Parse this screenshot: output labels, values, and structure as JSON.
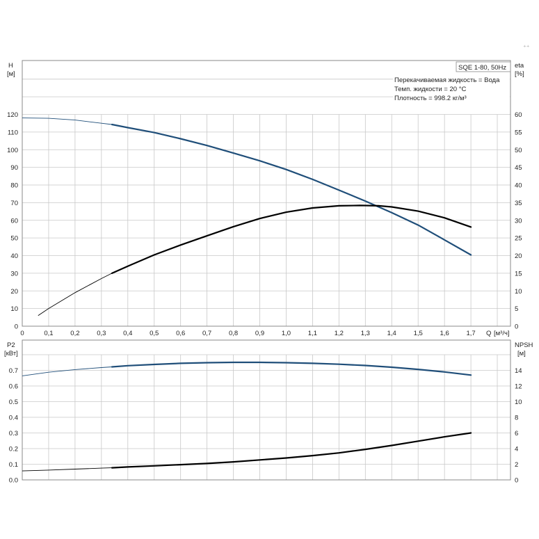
{
  "corner_mark": "⁺⁺",
  "chart_data": [
    {
      "type": "line",
      "name": "performance",
      "legend_box": "SQE 1-80, 50Hz",
      "info_lines": [
        "Перекачиваемая жидкость = Вода",
        "Темп. жидкости = 20 °C",
        "Плотность = 998.2 кг/м³"
      ],
      "ylabel_left": "H",
      "yunit_left": "[м]",
      "ylabel_right": "eta",
      "yunit_right": "[%]",
      "xlabel": "Q",
      "xunit": "[м³/ч]",
      "xlim": [
        0,
        1.85
      ],
      "ylim_left": [
        0,
        120
      ],
      "ylim_right": [
        0,
        60
      ],
      "xticks": [
        0,
        0.1,
        0.2,
        0.3,
        0.4,
        0.5,
        0.6,
        0.7,
        0.8,
        0.9,
        1.0,
        1.1,
        1.2,
        1.3,
        1.4,
        1.5,
        1.6,
        1.7
      ],
      "xtick_labels": [
        "0",
        "0,1",
        "0,2",
        "0,3",
        "0,4",
        "0,5",
        "0,6",
        "0,7",
        "0,8",
        "0,9",
        "1,0",
        "1,1",
        "1,2",
        "1,3",
        "1,4",
        "1,5",
        "1,6",
        "1,7"
      ],
      "yticks_left": [
        0,
        10,
        20,
        30,
        40,
        50,
        60,
        70,
        80,
        90,
        100,
        110,
        120
      ],
      "yticks_right": [
        0,
        5,
        10,
        15,
        20,
        25,
        30,
        35,
        40,
        45,
        50,
        55,
        60
      ],
      "grid": true,
      "series": [
        {
          "axis": "left",
          "color": "#1f4e79",
          "x": [
            0,
            0.1,
            0.2,
            0.3,
            0.34,
            0.4,
            0.5,
            0.6,
            0.7,
            0.8,
            0.9,
            1.0,
            1.1,
            1.2,
            1.3,
            1.4,
            1.5,
            1.6,
            1.7
          ],
          "y": [
            118,
            117.8,
            116.8,
            115,
            114.3,
            112.5,
            109.7,
            106.2,
            102.4,
            98.1,
            93.7,
            88.8,
            83.2,
            77.1,
            70.9,
            64.3,
            57.3,
            48.9,
            40.4
          ],
          "bold_from": 0.34
        },
        {
          "axis": "right",
          "color": "#000000",
          "x": [
            0.06,
            0.1,
            0.2,
            0.3,
            0.34,
            0.4,
            0.5,
            0.6,
            0.7,
            0.8,
            0.9,
            1.0,
            1.1,
            1.2,
            1.28,
            1.35,
            1.4,
            1.5,
            1.6,
            1.7
          ],
          "y": [
            3,
            5,
            9.5,
            13.5,
            15,
            17,
            20.2,
            23,
            25.6,
            28.2,
            30.5,
            32.3,
            33.5,
            34.1,
            34.2,
            34.1,
            33.8,
            32.6,
            30.7,
            28.1
          ],
          "bold_from": 0.34
        }
      ]
    },
    {
      "type": "line",
      "name": "power-npsh",
      "ylabel_left": "P2",
      "yunit_left": "[кВт]",
      "ylabel_right": "NPSH",
      "yunit_right": "[м]",
      "xlim": [
        0,
        1.85
      ],
      "ylim_left": [
        0,
        0.8
      ],
      "ylim_right": [
        0,
        16
      ],
      "yticks_left": [
        0,
        0.1,
        0.2,
        0.3,
        0.4,
        0.5,
        0.6,
        0.7
      ],
      "ytick_labels_left": [
        "0.0",
        "0.1",
        "0.2",
        "0.3",
        "0.4",
        "0.5",
        "0.6",
        "0.7"
      ],
      "yticks_right": [
        0,
        2,
        4,
        6,
        8,
        10,
        12,
        14
      ],
      "grid": true,
      "series": [
        {
          "axis": "left",
          "color": "#1f4e79",
          "x": [
            0,
            0.1,
            0.2,
            0.3,
            0.34,
            0.4,
            0.5,
            0.6,
            0.7,
            0.8,
            0.9,
            1.0,
            1.1,
            1.2,
            1.3,
            1.4,
            1.5,
            1.6,
            1.7
          ],
          "y": [
            0.665,
            0.688,
            0.705,
            0.718,
            0.722,
            0.73,
            0.738,
            0.745,
            0.749,
            0.751,
            0.751,
            0.749,
            0.745,
            0.739,
            0.731,
            0.72,
            0.706,
            0.69,
            0.67
          ],
          "bold_from": 0.34
        },
        {
          "axis": "right",
          "color": "#000000",
          "x": [
            0,
            0.1,
            0.2,
            0.3,
            0.34,
            0.4,
            0.5,
            0.6,
            0.7,
            0.8,
            0.9,
            1.0,
            1.1,
            1.2,
            1.3,
            1.4,
            1.5,
            1.6,
            1.7
          ],
          "y": [
            1.15,
            1.25,
            1.38,
            1.5,
            1.55,
            1.65,
            1.8,
            1.95,
            2.1,
            2.3,
            2.55,
            2.8,
            3.1,
            3.45,
            3.9,
            4.4,
            4.95,
            5.5,
            6.0
          ],
          "bold_from": 0.34
        }
      ]
    }
  ]
}
